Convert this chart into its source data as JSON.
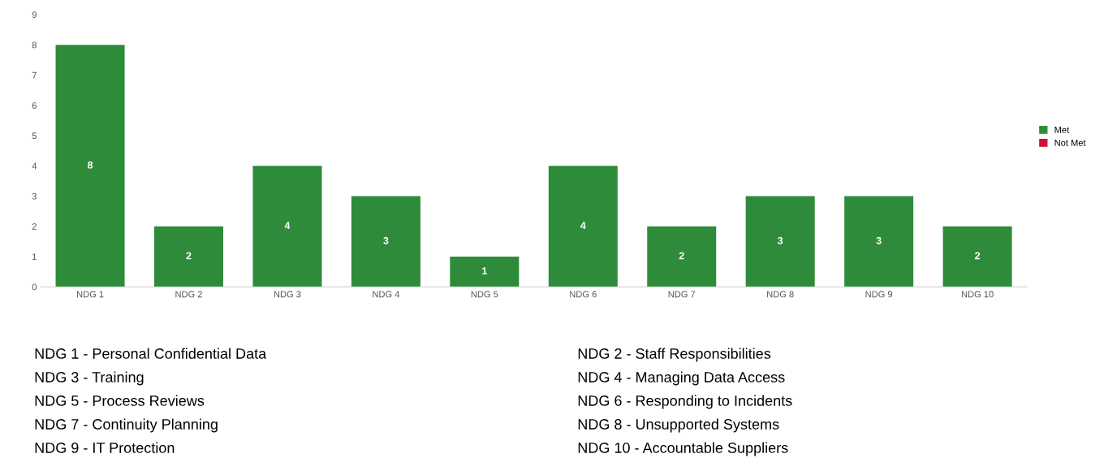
{
  "chart_data": {
    "type": "bar",
    "categories": [
      "NDG 1",
      "NDG 2",
      "NDG 3",
      "NDG 4",
      "NDG 5",
      "NDG 6",
      "NDG 7",
      "NDG 8",
      "NDG 9",
      "NDG 10"
    ],
    "series": [
      {
        "name": "Met",
        "color": "#2e8b3a",
        "values": [
          8,
          2,
          4,
          3,
          1,
          4,
          2,
          3,
          3,
          2
        ],
        "value_labels": [
          "8",
          "2",
          "4",
          "3",
          "1",
          "4",
          "2",
          "3",
          "3",
          "2"
        ]
      },
      {
        "name": "Not Met",
        "color": "#d0103a",
        "values": [
          null,
          null,
          null,
          null,
          null,
          null,
          null,
          null,
          null,
          null
        ]
      }
    ],
    "ylim": [
      0,
      9
    ],
    "yticks": [
      0,
      1,
      2,
      3,
      4,
      5,
      6,
      7,
      8,
      9
    ],
    "grid": false,
    "legend": "right",
    "annotations": [
      "NDG 1 - Personal Confidential Data",
      "NDG 2 - Staff Responsibilities",
      "NDG 3 - Training",
      "NDG 4 - Managing Data Access",
      "NDG 5 - Process Reviews",
      "NDG 6 - Responding to Incidents",
      "NDG 7 - Continuity Planning",
      "NDG 8 - Unsupported Systems",
      "NDG 9 - IT Protection",
      "NDG 10 - Accountable Suppliers"
    ]
  }
}
